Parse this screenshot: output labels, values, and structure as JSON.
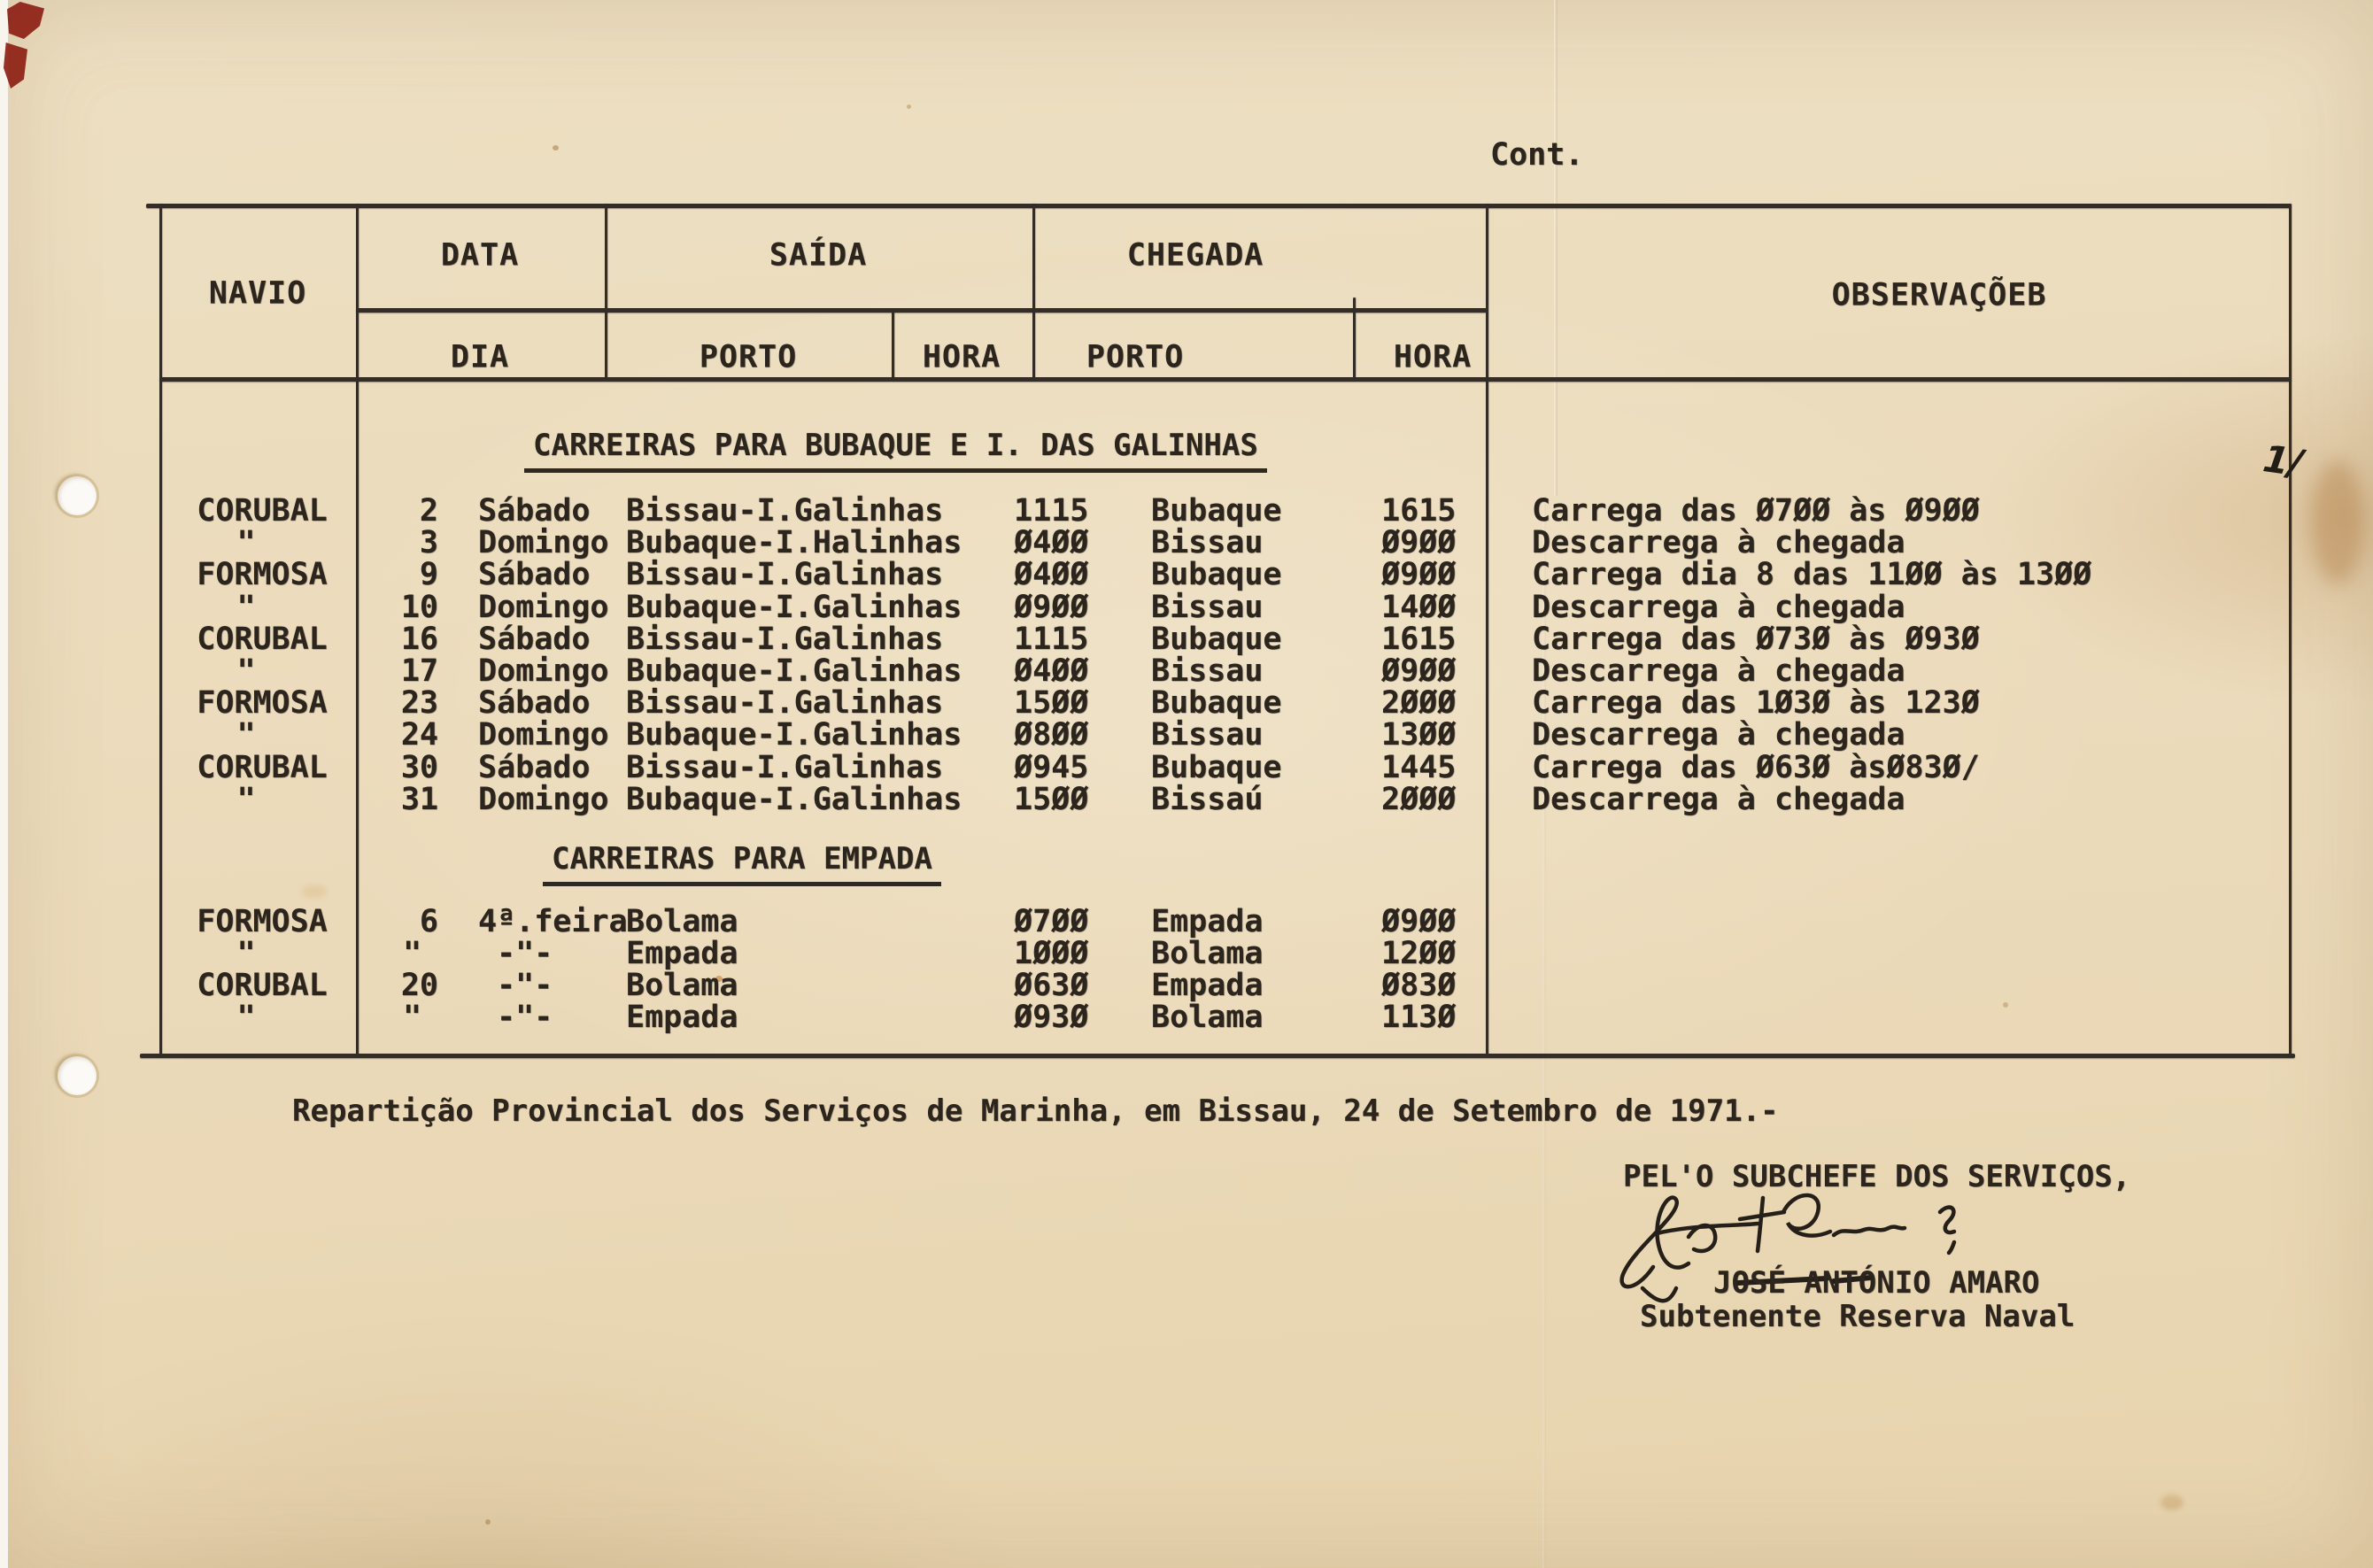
{
  "page": {
    "cont_label": "Cont.",
    "margin_mark": "1/"
  },
  "table": {
    "headers": {
      "navio": "NAVIO",
      "data": "DATA",
      "saida": "SAÍDA",
      "chegada": "CHEGADA",
      "observacoes": "OBSERVAÇÕEB",
      "dia": "DIA",
      "porto_saida": "PORTO",
      "hora_saida": "HORA",
      "porto_chegada": "PORTO",
      "hora_chegada": "HORA"
    },
    "sections": [
      {
        "title": "CARREIRAS PARA BUBAQUE E I. DAS GALINHAS",
        "rows": [
          {
            "navio": "CORUBAL",
            "dia": "2",
            "dia_nome": "Sábado",
            "porto_saida": "Bissau-I.Galinhas",
            "hora_saida": "1115",
            "porto_chegada": "Bubaque",
            "hora_chegada": "1615",
            "obs": "Carrega das Ø7ØØ às Ø9ØØ"
          },
          {
            "navio": "\"",
            "dia": "3",
            "dia_nome": "Domingo",
            "porto_saida": "Bubaque-I.Halinhas",
            "hora_saida": "Ø4ØØ",
            "porto_chegada": "Bissau",
            "hora_chegada": "Ø9ØØ",
            "obs": "Descarrega à chegada"
          },
          {
            "navio": "FORMOSA",
            "dia": "9",
            "dia_nome": "Sábado",
            "porto_saida": "Bissau-I.Galinhas",
            "hora_saida": "Ø4ØØ",
            "porto_chegada": "Bubaque",
            "hora_chegada": "Ø9ØØ",
            "obs": "Carrega dia 8 das 11ØØ às 13ØØ"
          },
          {
            "navio": "\"",
            "dia": "10",
            "dia_nome": "Domingo",
            "porto_saida": "Bubaque-I.Galinhas",
            "hora_saida": "Ø9ØØ",
            "porto_chegada": "Bissau",
            "hora_chegada": "14ØØ",
            "obs": "Descarrega à chegada"
          },
          {
            "navio": "CORUBAL",
            "dia": "16",
            "dia_nome": "Sábado",
            "porto_saida": "Bissau-I.Galinhas",
            "hora_saida": "1115",
            "porto_chegada": "Bubaque",
            "hora_chegada": "1615",
            "obs": "Carrega das Ø73Ø às Ø93Ø"
          },
          {
            "navio": "\"",
            "dia": "17",
            "dia_nome": "Domingo",
            "porto_saida": "Bubaque-I.Galinhas",
            "hora_saida": "Ø4ØØ",
            "porto_chegada": "Bissau",
            "hora_chegada": "Ø9ØØ",
            "obs": "Descarrega à chegada"
          },
          {
            "navio": "FORMOSA",
            "dia": "23",
            "dia_nome": "Sábado",
            "porto_saida": "Bissau-I.Galinhas",
            "hora_saida": "15ØØ",
            "porto_chegada": "Bubaque",
            "hora_chegada": "2ØØØ",
            "obs": "Carrega das 1Ø3Ø às 123Ø"
          },
          {
            "navio": "\"",
            "dia": "24",
            "dia_nome": "Domingo",
            "porto_saida": "Bubaque-I.Galinhas",
            "hora_saida": "Ø8ØØ",
            "porto_chegada": "Bissau",
            "hora_chegada": "13ØØ",
            "obs": "Descarrega à chegada"
          },
          {
            "navio": "CORUBAL",
            "dia": "30",
            "dia_nome": "Sábado",
            "porto_saida": "Bissau-I.Galinhas",
            "hora_saida": "Ø945",
            "porto_chegada": "Bubaque",
            "hora_chegada": "1445",
            "obs": "Carrega das Ø63Ø àsØ83Ø/"
          },
          {
            "navio": "\"",
            "dia": "31",
            "dia_nome": "Domingo",
            "porto_saida": "Bubaque-I.Galinhas",
            "hora_saida": "15ØØ",
            "porto_chegada": "Bissaú",
            "hora_chegada": "2ØØØ",
            "obs": "Descarrega à chegada"
          }
        ]
      },
      {
        "title": "CARREIRAS PARA EMPADA",
        "rows": [
          {
            "navio": "FORMOSA",
            "dia": "6",
            "dia_nome": "4ª.feira",
            "porto_saida": "Bolama",
            "hora_saida": "Ø7ØØ",
            "porto_chegada": "Empada",
            "hora_chegada": "Ø9ØØ",
            "obs": ""
          },
          {
            "navio": "\"",
            "dia": "\"",
            "dia_nome": "-\"-",
            "porto_saida": "Empada",
            "hora_saida": "1ØØØ",
            "porto_chegada": "Bolama",
            "hora_chegada": "12ØØ",
            "obs": ""
          },
          {
            "navio": "CORUBAL",
            "dia": "20",
            "dia_nome": "-\"-",
            "porto_saida": "Bolama",
            "hora_saida": "Ø63Ø",
            "porto_chegada": "Empada",
            "hora_chegada": "Ø83Ø",
            "obs": ""
          },
          {
            "navio": "\"",
            "dia": "\"",
            "dia_nome": "-\"-",
            "porto_saida": "Empada",
            "hora_saida": "Ø93Ø",
            "porto_chegada": "Bolama",
            "hora_chegada": "113Ø",
            "obs": ""
          }
        ]
      }
    ]
  },
  "footer": {
    "line": "Repartição Provincial dos Serviços de Marinha, em Bissau, 24 de Setembro de 1971.-"
  },
  "signature": {
    "pelo": "PEL'O SUBCHEFE DOS SERVIÇOS,",
    "name": "JOSÉ ANTÓNIO AMARO",
    "role": "Subtenente Reserva Naval"
  }
}
